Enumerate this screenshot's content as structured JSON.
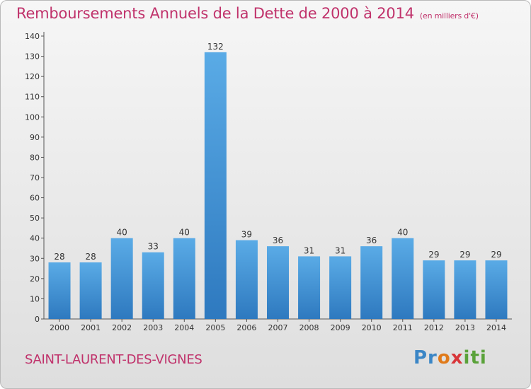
{
  "header": {
    "title": "Remboursements Annuels de la Dette de 2000 à 2014",
    "subtitle": "(en milliers d'€)"
  },
  "footer": {
    "commune": "SAINT-LAURENT-DES-VIGNES",
    "logo_text": "Proxiti"
  },
  "colors": {
    "title": "#c0326b",
    "bar_top": "#5aabe6",
    "bar_bottom": "#2e79bf",
    "axis": "#555555"
  },
  "chart_data": {
    "type": "bar",
    "title": "Remboursements Annuels de la Dette de 2000 à 2014",
    "subtitle": "(en milliers d'€)",
    "xlabel": "",
    "ylabel": "",
    "categories": [
      "2000",
      "2001",
      "2002",
      "2003",
      "2004",
      "2005",
      "2006",
      "2007",
      "2008",
      "2009",
      "2010",
      "2011",
      "2012",
      "2013",
      "2014"
    ],
    "values": [
      28,
      28,
      40,
      33,
      40,
      132,
      39,
      36,
      31,
      31,
      36,
      40,
      29,
      29,
      29
    ],
    "ylim": [
      0,
      140
    ],
    "yticks": [
      0,
      10,
      20,
      30,
      40,
      50,
      60,
      70,
      80,
      90,
      100,
      110,
      120,
      130,
      140
    ],
    "grid": false,
    "legend": "none",
    "data_labels": true
  }
}
